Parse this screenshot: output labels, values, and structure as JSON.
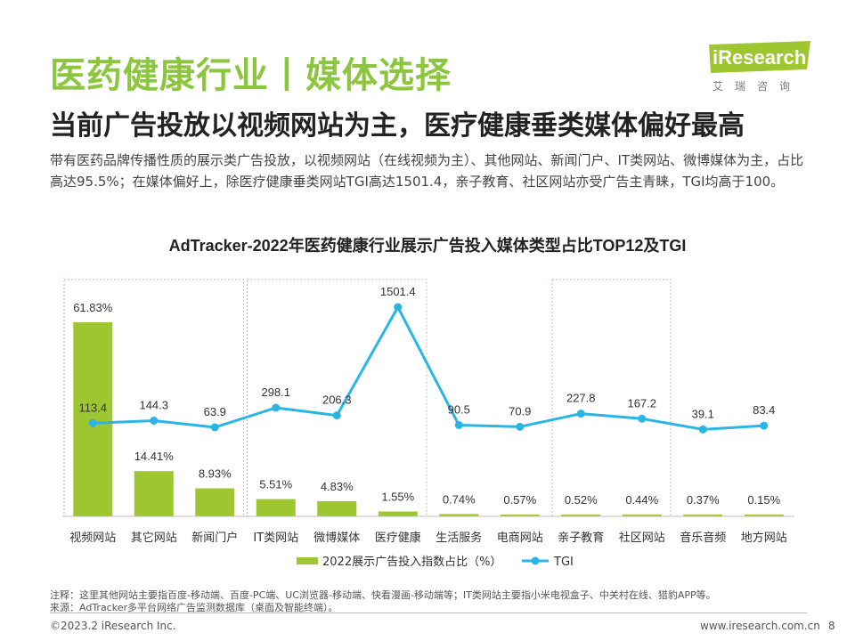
{
  "header": {
    "title": "医药健康行业丨媒体选择",
    "subtitle": "当前广告投放以视频网站为主，医疗健康垂类媒体偏好最高",
    "description": "带有医药品牌传播性质的展示类广告投放，以视频网站（在线视频为主）、其他网站、新闻门户、IT类网站、微博媒体为主，占比高达95.5%；在媒体偏好上，除医疗健康垂类网站TGI高达1501.4，亲子教育、社区网站亦受广告主青睐，TGI均高于100。"
  },
  "logo": {
    "name": "iResearch",
    "subtitle": "艾瑞咨询"
  },
  "chart_data": {
    "type": "bar+line",
    "title": "AdTracker-2022年医药健康行业展示广告投入媒体类型占比TOP12及TGI",
    "categories": [
      "视频网站",
      "其它网站",
      "新闻门户",
      "IT类网站",
      "微博媒体",
      "医疗健康",
      "生活服务",
      "电商网站",
      "亲子教育",
      "社区网站",
      "音乐音频",
      "地方网站"
    ],
    "series": [
      {
        "name": "2022展示广告投入指数占比（%）",
        "type": "bar",
        "color": "#9ec631",
        "values": [
          61.83,
          14.41,
          8.93,
          5.51,
          4.83,
          1.55,
          0.74,
          0.57,
          0.52,
          0.44,
          0.37,
          0.15
        ],
        "labels": [
          "61.83%",
          "14.41%",
          "8.93%",
          "5.51%",
          "4.83%",
          "1.55%",
          "0.74%",
          "0.57%",
          "0.52%",
          "0.44%",
          "0.37%",
          "0.15%"
        ]
      },
      {
        "name": "TGI",
        "type": "line",
        "color": "#29b6e6",
        "values": [
          113.4,
          144.3,
          63.9,
          298.1,
          206.3,
          1501.4,
          90.5,
          70.9,
          227.8,
          167.2,
          39.1,
          83.4
        ],
        "labels": [
          "113.4",
          "144.3",
          "63.9",
          "298.1",
          "206.3",
          "1501.4",
          "90.5",
          "70.9",
          "227.8",
          "167.2",
          "39.1",
          "83.4"
        ]
      }
    ],
    "highlight_groups": [
      [
        0,
        1,
        2
      ],
      [
        3,
        4,
        5
      ],
      [
        8,
        9
      ]
    ],
    "legend_position": "bottom"
  },
  "notes": {
    "note": "注释：这里其他网站主要指百度-移动端、百度-PC端、UC浏览器-移动端、快看漫画-移动端等；IT类网站主要指小米电视盒子、中关村在线、猎豹APP等。",
    "source": "来源：AdTracker多平台网络广告监测数据库（桌面及智能终端）。"
  },
  "footer": {
    "copyright": "©2023.2 iResearch Inc.",
    "url": "www.iresearch.com.cn",
    "page": "8"
  }
}
